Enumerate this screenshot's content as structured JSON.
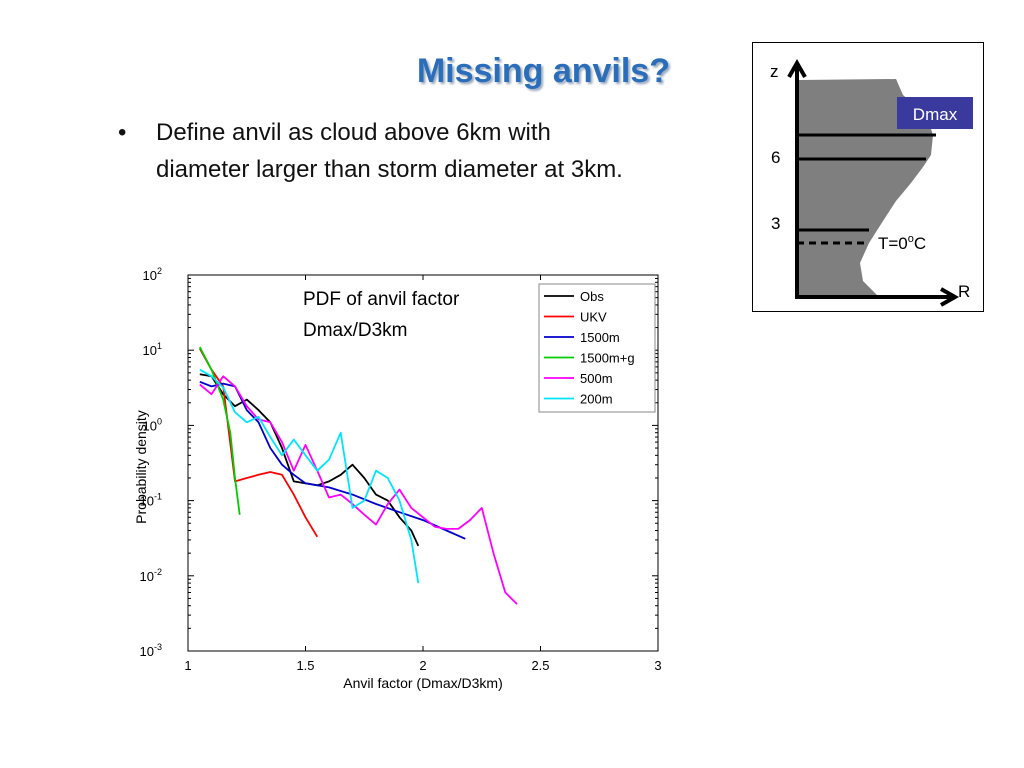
{
  "slide": {
    "title": "Missing anvils?",
    "bullet_symbol": "•",
    "bullet_text": "Define anvil as cloud above 6km with diameter larger than storm diameter at 3km."
  },
  "chart_data": {
    "type": "line",
    "annotation": [
      "PDF of anvil factor",
      "Dmax/D3km"
    ],
    "xlabel": "Anvil factor (Dmax/D3km)",
    "ylabel": "Probability density",
    "xlim": [
      1,
      3
    ],
    "ylim": [
      0.001,
      100
    ],
    "yscale": "log",
    "x_ticks": [
      "1",
      "1.5",
      "2",
      "2.5",
      "3"
    ],
    "y_ticks": [
      {
        "base": "10",
        "exp": "-3"
      },
      {
        "base": "10",
        "exp": "-2"
      },
      {
        "base": "10",
        "exp": "-1"
      },
      {
        "base": "10",
        "exp": "0"
      },
      {
        "base": "10",
        "exp": "1"
      },
      {
        "base": "10",
        "exp": "2"
      }
    ],
    "grid": false,
    "legend_position": "top-right",
    "series": [
      {
        "name": "Obs",
        "color": "#000000",
        "x": [
          1.05,
          1.1,
          1.15,
          1.2,
          1.25,
          1.3,
          1.35,
          1.4,
          1.45,
          1.5,
          1.55,
          1.6,
          1.65,
          1.7,
          1.75,
          1.8,
          1.85,
          1.9,
          1.95,
          1.98
        ],
        "y": [
          4.8,
          4.5,
          2.6,
          1.8,
          2.2,
          1.6,
          1.1,
          0.5,
          0.18,
          0.17,
          0.16,
          0.18,
          0.22,
          0.3,
          0.2,
          0.12,
          0.1,
          0.06,
          0.04,
          0.025
        ]
      },
      {
        "name": "UKV",
        "color": "#ff0000",
        "x": [
          1.05,
          1.1,
          1.15,
          1.2,
          1.25,
          1.3,
          1.35,
          1.4,
          1.45,
          1.5,
          1.55
        ],
        "y": [
          10.5,
          5.5,
          3.3,
          0.18,
          0.2,
          0.22,
          0.24,
          0.22,
          0.12,
          0.06,
          0.033
        ]
      },
      {
        "name": "1500m",
        "color": "#0000cc",
        "x": [
          1.05,
          1.1,
          1.15,
          1.2,
          1.25,
          1.3,
          1.35,
          1.4,
          1.45,
          1.5,
          1.6,
          1.7,
          1.8,
          1.9,
          2.0,
          2.1,
          2.18
        ],
        "y": [
          3.8,
          3.3,
          3.6,
          3.3,
          1.6,
          1.1,
          0.5,
          0.3,
          0.22,
          0.17,
          0.15,
          0.12,
          0.09,
          0.07,
          0.055,
          0.04,
          0.031
        ]
      },
      {
        "name": "1500m+g",
        "color": "#00cc00",
        "x": [
          1.05,
          1.1,
          1.15,
          1.18,
          1.2,
          1.22
        ],
        "y": [
          11.0,
          5.5,
          2.2,
          0.8,
          0.2,
          0.065
        ]
      },
      {
        "name": "500m",
        "color": "#ff00ff",
        "x": [
          1.05,
          1.1,
          1.15,
          1.2,
          1.25,
          1.3,
          1.35,
          1.4,
          1.45,
          1.5,
          1.55,
          1.6,
          1.65,
          1.7,
          1.75,
          1.8,
          1.85,
          1.9,
          1.95,
          2.0,
          2.05,
          2.1,
          2.15,
          2.2,
          2.25,
          2.3,
          2.35,
          2.4
        ],
        "y": [
          3.5,
          2.6,
          4.5,
          3.3,
          1.8,
          1.2,
          1.1,
          0.6,
          0.25,
          0.55,
          0.25,
          0.11,
          0.12,
          0.09,
          0.065,
          0.048,
          0.09,
          0.14,
          0.08,
          0.06,
          0.045,
          0.042,
          0.042,
          0.055,
          0.08,
          0.02,
          0.006,
          0.0042
        ]
      },
      {
        "name": "200m",
        "color": "#00e5ff",
        "x": [
          1.05,
          1.1,
          1.15,
          1.2,
          1.25,
          1.3,
          1.35,
          1.4,
          1.45,
          1.5,
          1.55,
          1.6,
          1.65,
          1.7,
          1.75,
          1.8,
          1.85,
          1.9,
          1.95,
          1.98
        ],
        "y": [
          5.5,
          4.5,
          3.2,
          1.5,
          1.1,
          1.3,
          0.7,
          0.4,
          0.65,
          0.4,
          0.25,
          0.35,
          0.8,
          0.08,
          0.1,
          0.25,
          0.2,
          0.1,
          0.03,
          0.008
        ]
      }
    ]
  },
  "schematic": {
    "z_label": "z",
    "r_label": "R",
    "level_6": "6",
    "level_3": "3",
    "dmax_label": "Dmax",
    "dmax_color": "#3a3a9e",
    "freezing_label": "T=0",
    "freezing_sup": "o",
    "freezing_unit": "C",
    "cloud_color": "#7f7f7f"
  }
}
